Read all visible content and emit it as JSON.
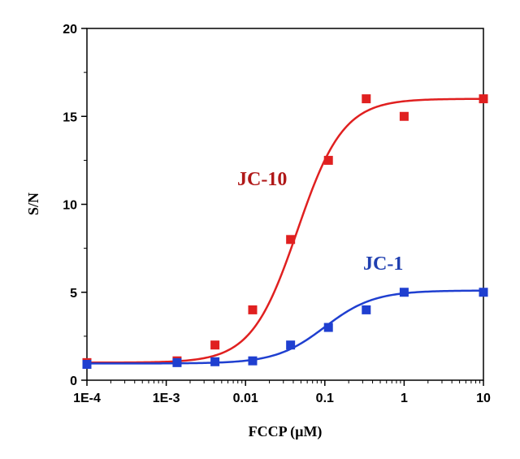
{
  "chart_data": {
    "type": "scatter",
    "xlabel": "FCCP (µM)",
    "ylabel": "S/N",
    "x_scale": "log",
    "xlim": [
      0.0001,
      10
    ],
    "ylim": [
      0,
      20
    ],
    "x_ticks": [
      0.0001,
      0.001,
      0.01,
      0.1,
      1,
      10
    ],
    "x_tick_labels": [
      "1E-4",
      "1E-3",
      "0.01",
      "0.1",
      "1",
      "10"
    ],
    "y_ticks": [
      0,
      5,
      10,
      15,
      20
    ],
    "y_tick_labels": [
      "0",
      "5",
      "10",
      "15",
      "20"
    ],
    "grid": false,
    "series": [
      {
        "name": "JC-10",
        "color": "#e02020",
        "label_color": "#b01818",
        "x": [
          0.0001,
          0.00137,
          0.00412,
          0.0123,
          0.037,
          0.111,
          0.333,
          1,
          10
        ],
        "y": [
          1.0,
          1.1,
          2.0,
          4.0,
          8.0,
          12.5,
          16.0,
          15.0,
          16.0
        ],
        "fit": {
          "bottom": 1.0,
          "top": 16.0,
          "ec50": 0.045,
          "hill": 1.5
        }
      },
      {
        "name": "JC-1",
        "color": "#1f3fd0",
        "label_color": "#1f3fb0",
        "x": [
          0.0001,
          0.00137,
          0.00412,
          0.0123,
          0.037,
          0.111,
          0.333,
          1,
          10
        ],
        "y": [
          0.9,
          1.0,
          1.05,
          1.1,
          2.0,
          3.0,
          4.0,
          5.0,
          5.0
        ],
        "fit": {
          "bottom": 0.95,
          "top": 5.1,
          "ec50": 0.1,
          "hill": 1.4
        }
      }
    ]
  }
}
